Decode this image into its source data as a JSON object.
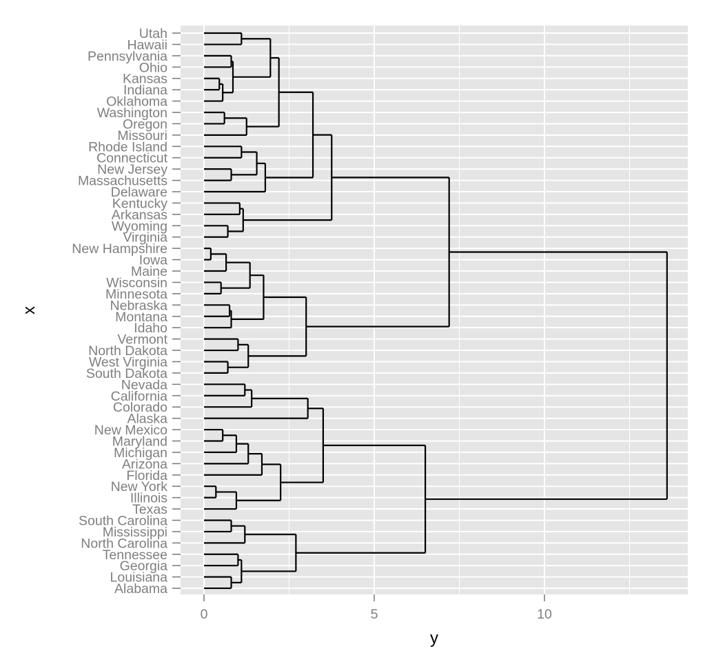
{
  "chart_data": {
    "type": "dendrogram",
    "title": "",
    "xlabel": "x",
    "ylabel": "y",
    "x_axis": "states (categorical, one per row)",
    "y_axis": "merge height",
    "ylim": [
      -0.5,
      14.3
    ],
    "yticks": [
      0,
      5,
      10
    ],
    "grid": true,
    "legend": "none",
    "colors": {
      "panel": "#e5e5e5",
      "grid": "#ffffff",
      "line": "#000000",
      "tick_text": "#7f7f7f",
      "title_text": "#000000"
    },
    "labels": [
      "Utah",
      "Hawaii",
      "Pennsylvania",
      "Ohio",
      "Kansas",
      "Indiana",
      "Oklahoma",
      "Washington",
      "Oregon",
      "Missouri",
      "Rhode Island",
      "Connecticut",
      "New Jersey",
      "Massachusetts",
      "Delaware",
      "Kentucky",
      "Arkansas",
      "Wyoming",
      "Virginia",
      "New Hampshire",
      "Iowa",
      "Maine",
      "Wisconsin",
      "Minnesota",
      "Nebraska",
      "Montana",
      "Idaho",
      "Vermont",
      "North Dakota",
      "West Virginia",
      "South Dakota",
      "Nevada",
      "California",
      "Colorado",
      "Alaska",
      "New Mexico",
      "Maryland",
      "Michigan",
      "Arizona",
      "Florida",
      "New York",
      "Illinois",
      "Texas",
      "South Carolina",
      "Mississippi",
      "North Carolina",
      "Tennessee",
      "Georgia",
      "Louisiana",
      "Alabama"
    ],
    "merges": [
      {
        "a": "Utah",
        "b": "Hawaii",
        "height": 1.1
      },
      {
        "a": "Kansas",
        "b": "Indiana",
        "height": 0.45
      },
      {
        "a": "m2",
        "b": "Oklahoma",
        "height": 0.55
      },
      {
        "a": "Pennsylvania",
        "b": "Ohio",
        "height": 0.8
      },
      {
        "a": "m4",
        "b": "m3",
        "height": 0.85
      },
      {
        "a": "m1",
        "b": "m5",
        "height": 1.95
      },
      {
        "a": "Washington",
        "b": "Oregon",
        "height": 0.6
      },
      {
        "a": "m7",
        "b": "Missouri",
        "height": 1.25
      },
      {
        "a": "m6",
        "b": "m8",
        "height": 2.2
      },
      {
        "a": "Rhode Island",
        "b": "Connecticut",
        "height": 1.1
      },
      {
        "a": "New Jersey",
        "b": "Massachusetts",
        "height": 0.8
      },
      {
        "a": "m10",
        "b": "m11",
        "height": 1.55
      },
      {
        "a": "m12",
        "b": "Delaware",
        "height": 1.8
      },
      {
        "a": "m9",
        "b": "m13",
        "height": 3.2
      },
      {
        "a": "Kentucky",
        "b": "Arkansas",
        "height": 1.05
      },
      {
        "a": "Wyoming",
        "b": "Virginia",
        "height": 0.7
      },
      {
        "a": "m15",
        "b": "m16",
        "height": 1.15
      },
      {
        "a": "m14",
        "b": "m17",
        "height": 3.75
      },
      {
        "a": "New Hampshire",
        "b": "Iowa",
        "height": 0.2
      },
      {
        "a": "m19",
        "b": "Maine",
        "height": 0.65
      },
      {
        "a": "Wisconsin",
        "b": "Minnesota",
        "height": 0.5
      },
      {
        "a": "m20",
        "b": "m21",
        "height": 1.35
      },
      {
        "a": "Nebraska",
        "b": "Montana",
        "height": 0.75
      },
      {
        "a": "m23",
        "b": "Idaho",
        "height": 0.8
      },
      {
        "a": "m22",
        "b": "m24",
        "height": 1.75
      },
      {
        "a": "Vermont",
        "b": "North Dakota",
        "height": 1.0
      },
      {
        "a": "West Virginia",
        "b": "South Dakota",
        "height": 0.7
      },
      {
        "a": "m26",
        "b": "m27",
        "height": 1.3
      },
      {
        "a": "m25",
        "b": "m28",
        "height": 3.0
      },
      {
        "a": "m18",
        "b": "m29",
        "height": 7.2
      },
      {
        "a": "Nevada",
        "b": "California",
        "height": 1.2
      },
      {
        "a": "m31",
        "b": "Colorado",
        "height": 1.4
      },
      {
        "a": "m32",
        "b": "Alaska",
        "height": 3.05
      },
      {
        "a": "New Mexico",
        "b": "Maryland",
        "height": 0.55
      },
      {
        "a": "m34",
        "b": "Michigan",
        "height": 0.95
      },
      {
        "a": "m35",
        "b": "Arizona",
        "height": 1.3
      },
      {
        "a": "m36",
        "b": "Florida",
        "height": 1.7
      },
      {
        "a": "New York",
        "b": "Illinois",
        "height": 0.35
      },
      {
        "a": "m38",
        "b": "Texas",
        "height": 0.95
      },
      {
        "a": "m37",
        "b": "m39",
        "height": 2.25
      },
      {
        "a": "m33",
        "b": "m40",
        "height": 3.5
      },
      {
        "a": "South Carolina",
        "b": "Mississippi",
        "height": 0.8
      },
      {
        "a": "m42",
        "b": "North Carolina",
        "height": 1.2
      },
      {
        "a": "Tennessee",
        "b": "Georgia",
        "height": 1.0
      },
      {
        "a": "Louisiana",
        "b": "Alabama",
        "height": 0.8
      },
      {
        "a": "m44",
        "b": "m45",
        "height": 1.1
      },
      {
        "a": "m43",
        "b": "m46",
        "height": 2.7
      },
      {
        "a": "m41",
        "b": "m47",
        "height": 6.5
      },
      {
        "a": "m30",
        "b": "m48",
        "height": 13.6
      }
    ]
  }
}
